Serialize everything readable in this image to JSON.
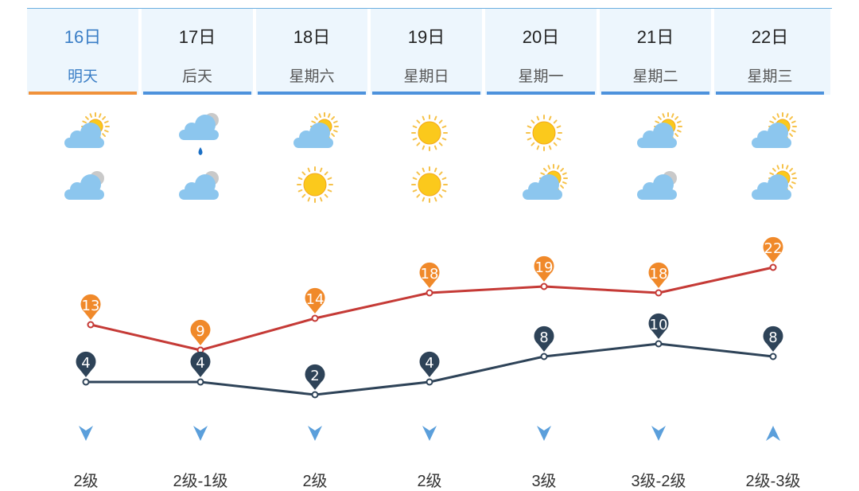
{
  "days": [
    {
      "date": "16日",
      "name": "明天",
      "active": true
    },
    {
      "date": "17日",
      "name": "后天",
      "active": false
    },
    {
      "date": "18日",
      "name": "星期六",
      "active": false
    },
    {
      "date": "19日",
      "name": "星期日",
      "active": false
    },
    {
      "date": "20日",
      "name": "星期一",
      "active": false
    },
    {
      "date": "21日",
      "name": "星期二",
      "active": false
    },
    {
      "date": "22日",
      "name": "星期三",
      "active": false
    }
  ],
  "weather_icons": {
    "day": [
      "partly-cloudy-icon",
      "cloud-rain-icon",
      "partly-cloudy-icon",
      "sun-icon",
      "sun-icon",
      "partly-cloudy-icon",
      "partly-cloudy-icon"
    ],
    "night": [
      "cloudy-icon",
      "cloudy-icon",
      "sun-icon",
      "sun-icon",
      "partly-cloudy-icon",
      "cloudy-icon",
      "partly-cloudy-icon"
    ]
  },
  "chart_data": {
    "type": "line",
    "categories": [
      "16日",
      "17日",
      "18日",
      "19日",
      "20日",
      "21日",
      "22日"
    ],
    "series": [
      {
        "values": [
          13,
          9,
          14,
          18,
          19,
          18,
          22
        ],
        "color": "#c53a36",
        "marker_color": "#f0892a"
      },
      {
        "values": [
          4,
          4,
          2,
          4,
          8,
          10,
          8
        ],
        "color": "#2e4358",
        "marker_color": "#2e4358"
      }
    ]
  },
  "wind": {
    "directions": [
      "down",
      "down",
      "down",
      "down",
      "down",
      "down",
      "up"
    ],
    "levels": [
      "2级",
      "2级-1级",
      "2级",
      "2级",
      "3级",
      "3级-2级",
      "2级-3级"
    ],
    "arrow_color": "#5b9fdb"
  }
}
